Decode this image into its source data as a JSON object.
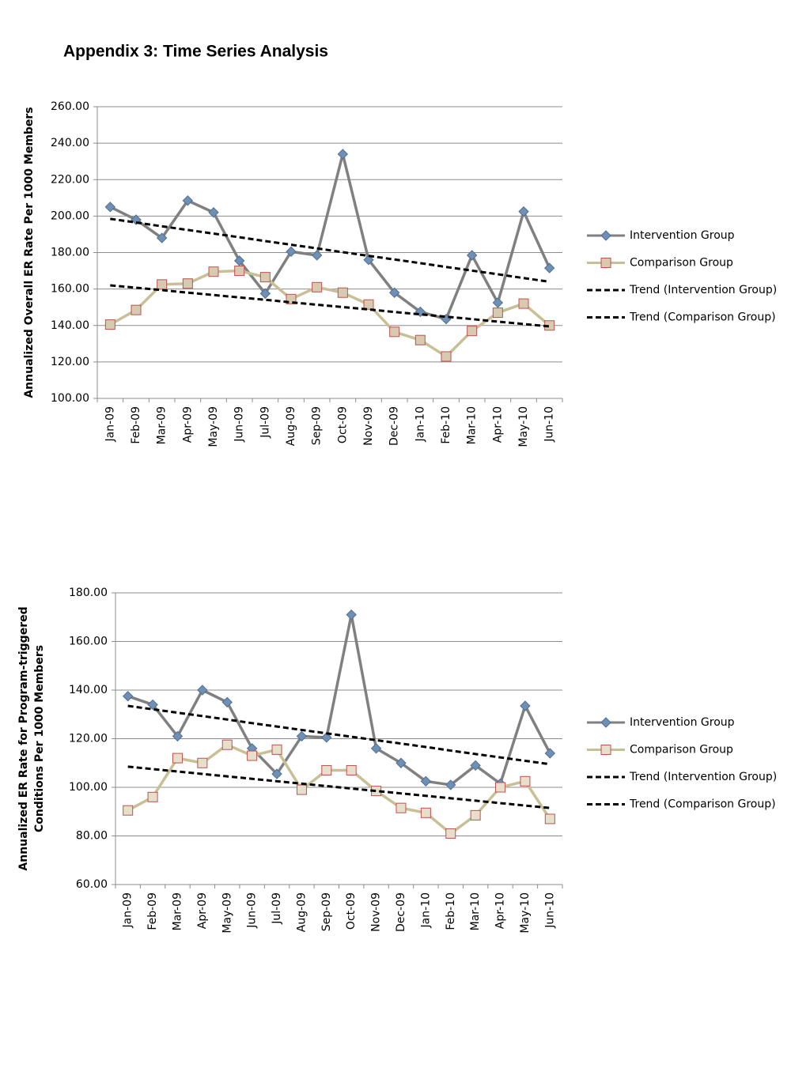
{
  "title": "Appendix 3: Time Series Analysis",
  "chart_data": [
    {
      "type": "line",
      "y_label": [
        "Annualized Overall ER Rate Per 1000 Members"
      ],
      "categories": [
        "Jan-09",
        "Feb-09",
        "Mar-09",
        "Apr-09",
        "May-09",
        "Jun-09",
        "Jul-09",
        "Aug-09",
        "Sep-09",
        "Oct-09",
        "Nov-09",
        "Dec-09",
        "Jan-10",
        "Feb-10",
        "Mar-10",
        "Apr-10",
        "May-10",
        "Jun-10"
      ],
      "series": [
        {
          "name": "Intervention Group",
          "color": "#808080",
          "marker": "diamond",
          "marker_color": "#6f8fb5",
          "marker_stroke": "#4f6f95",
          "values": [
            205,
            198,
            188,
            208.5,
            202,
            175.5,
            157.5,
            180.5,
            178.5,
            234,
            176,
            158,
            147.5,
            143.5,
            178.5,
            152.5,
            202.5,
            171.5
          ]
        },
        {
          "name": "Comparison Group",
          "color": "#c9bf97",
          "marker": "square",
          "marker_color": "#d6cbb0",
          "marker_stroke": "#c0504d",
          "values": [
            140.5,
            148.5,
            162.5,
            163,
            169.5,
            170,
            166.5,
            154.5,
            161,
            158,
            151.5,
            136.5,
            132,
            123,
            137,
            147,
            152,
            140
          ]
        },
        {
          "name": "Trend (Intervention Group)",
          "color": "#000000",
          "dashed": true,
          "values": [
            198.5,
            196.5,
            194.4,
            192.4,
            190.4,
            188.4,
            186.3,
            184.3,
            182.3,
            180.2,
            178.2,
            176.2,
            174.2,
            172.1,
            170.1,
            168.1,
            166.0,
            164.0
          ]
        },
        {
          "name": "Trend (Comparison Group)",
          "color": "#000000",
          "dashed": true,
          "values": [
            162.0,
            160.7,
            159.4,
            158.0,
            156.7,
            155.4,
            154.1,
            152.7,
            151.4,
            150.1,
            148.8,
            147.4,
            146.1,
            144.8,
            143.5,
            142.1,
            140.8,
            139.5
          ]
        }
      ],
      "ylim": [
        100,
        260
      ],
      "yticks": [
        {
          "value": 100,
          "label": "100.00"
        },
        {
          "value": 120,
          "label": "120.00"
        },
        {
          "value": 140,
          "label": "140.00"
        },
        {
          "value": 160,
          "label": "160.00"
        },
        {
          "value": 180,
          "label": "180.00"
        },
        {
          "value": 200,
          "label": "200.00"
        },
        {
          "value": 220,
          "label": "220.00"
        },
        {
          "value": 240,
          "label": "240.00"
        },
        {
          "value": 260,
          "label": "260.00"
        }
      ],
      "grid": true,
      "legend": "right"
    },
    {
      "type": "line",
      "y_label": [
        "Annualized ER Rate for Program-triggered",
        "Conditions Per 1000 Members"
      ],
      "categories": [
        "Jan-09",
        "Feb-09",
        "Mar-09",
        "Apr-09",
        "May-09",
        "Jun-09",
        "Jul-09",
        "Aug-09",
        "Sep-09",
        "Oct-09",
        "Nov-09",
        "Dec-09",
        "Jan-10",
        "Feb-10",
        "Mar-10",
        "Apr-10",
        "May-10",
        "Jun-10"
      ],
      "series": [
        {
          "name": "Intervention Group",
          "color": "#808080",
          "marker": "diamond",
          "marker_color": "#6f8fb5",
          "marker_stroke": "#4f6f95",
          "values": [
            137.5,
            134,
            121,
            140,
            135,
            116,
            105.5,
            121,
            120.5,
            171,
            116,
            110,
            102.5,
            101,
            109,
            101.5,
            133.5,
            114
          ]
        },
        {
          "name": "Comparison Group",
          "color": "#c9bf97",
          "marker": "square",
          "marker_color": "#e6dfcb",
          "marker_stroke": "#c0504d",
          "values": [
            90.5,
            96,
            112,
            110,
            117.5,
            113,
            115.5,
            99,
            107,
            107,
            98.5,
            91.5,
            89.5,
            81,
            88.5,
            100,
            102.5,
            87
          ]
        },
        {
          "name": "Trend (Intervention Group)",
          "color": "#000000",
          "dashed": true,
          "values": [
            133.5,
            132.1,
            130.7,
            129.3,
            127.9,
            126.4,
            125.0,
            123.6,
            122.2,
            120.8,
            119.4,
            118.0,
            116.6,
            115.1,
            113.7,
            112.3,
            110.9,
            109.5
          ]
        },
        {
          "name": "Trend (Comparison Group)",
          "color": "#000000",
          "dashed": true,
          "values": [
            108.5,
            107.5,
            106.5,
            105.5,
            104.5,
            103.5,
            102.5,
            101.5,
            100.5,
            99.5,
            98.5,
            97.5,
            96.5,
            95.5,
            94.5,
            93.5,
            92.5,
            91.5
          ]
        }
      ],
      "ylim": [
        60,
        180
      ],
      "yticks": [
        {
          "value": 60,
          "label": "60.00"
        },
        {
          "value": 80,
          "label": "80.00"
        },
        {
          "value": 100,
          "label": "100.00"
        },
        {
          "value": 120,
          "label": "120.00"
        },
        {
          "value": 140,
          "label": "140.00"
        },
        {
          "value": 160,
          "label": "160.00"
        },
        {
          "value": 180,
          "label": "180.00"
        }
      ],
      "grid": true,
      "legend": "right"
    }
  ]
}
